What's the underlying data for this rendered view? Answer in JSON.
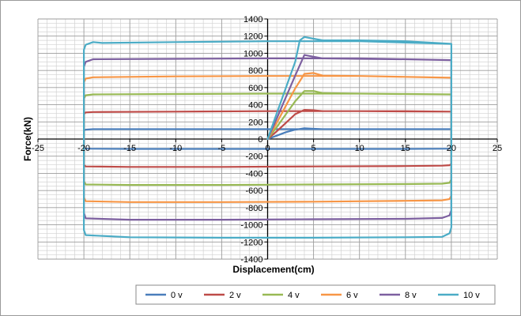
{
  "chart_data": {
    "type": "line",
    "title": "",
    "xlabel": "Displacement(cm)",
    "ylabel": "Force(kN)",
    "xlim": [
      -25,
      25
    ],
    "ylim": [
      -1400,
      1400
    ],
    "x_ticks": [
      -25,
      -20,
      -15,
      -10,
      -5,
      0,
      5,
      10,
      15,
      20,
      25
    ],
    "y_ticks": [
      -1400,
      -1200,
      -1000,
      -800,
      -600,
      -400,
      -200,
      0,
      200,
      400,
      600,
      800,
      1000,
      1200,
      1400
    ],
    "grid": true,
    "grid_minor": true,
    "legend_position": "bottom",
    "series": [
      {
        "name": "0 v",
        "color": "#4a7ebb",
        "points": [
          [
            0,
            0
          ],
          [
            1,
            40
          ],
          [
            2,
            80
          ],
          [
            3,
            110
          ],
          [
            4,
            125
          ],
          [
            5,
            120
          ],
          [
            6,
            115
          ],
          [
            10,
            115
          ],
          [
            15,
            115
          ],
          [
            20,
            115
          ],
          [
            20,
            0
          ],
          [
            20,
            -105
          ],
          [
            19.8,
            -112
          ],
          [
            15,
            -115
          ],
          [
            5,
            -115
          ],
          [
            -5,
            -115
          ],
          [
            -15,
            -115
          ],
          [
            -19.8,
            -112
          ],
          [
            -20,
            -105
          ],
          [
            -20,
            0
          ],
          [
            -20,
            100
          ],
          [
            -19.8,
            110
          ],
          [
            -19,
            115
          ],
          [
            -10,
            115
          ],
          [
            0,
            115
          ],
          [
            10,
            115
          ],
          [
            20,
            115
          ]
        ]
      },
      {
        "name": "2 v",
        "color": "#be4b48",
        "points": [
          [
            0,
            0
          ],
          [
            1,
            90
          ],
          [
            2,
            190
          ],
          [
            3,
            290
          ],
          [
            4,
            340
          ],
          [
            5,
            335
          ],
          [
            6,
            325
          ],
          [
            10,
            325
          ],
          [
            15,
            325
          ],
          [
            20,
            320
          ],
          [
            20,
            0
          ],
          [
            20,
            -290
          ],
          [
            19.8,
            -305
          ],
          [
            19,
            -310
          ],
          [
            15,
            -315
          ],
          [
            5,
            -320
          ],
          [
            -5,
            -325
          ],
          [
            -15,
            -325
          ],
          [
            -19.8,
            -320
          ],
          [
            -20,
            -300
          ],
          [
            -20,
            0
          ],
          [
            -20,
            290
          ],
          [
            -19.8,
            310
          ],
          [
            -19,
            315
          ],
          [
            -10,
            320
          ],
          [
            0,
            325
          ],
          [
            10,
            325
          ],
          [
            20,
            320
          ]
        ]
      },
      {
        "name": "4 v",
        "color": "#98b954",
        "points": [
          [
            0,
            0
          ],
          [
            1,
            140
          ],
          [
            2,
            290
          ],
          [
            3,
            440
          ],
          [
            4,
            560
          ],
          [
            5,
            560
          ],
          [
            6,
            535
          ],
          [
            10,
            530
          ],
          [
            15,
            525
          ],
          [
            20,
            520
          ],
          [
            20,
            0
          ],
          [
            20,
            -470
          ],
          [
            19.8,
            -510
          ],
          [
            19,
            -520
          ],
          [
            15,
            -525
          ],
          [
            5,
            -530
          ],
          [
            -5,
            -535
          ],
          [
            -15,
            -535
          ],
          [
            -19.8,
            -530
          ],
          [
            -20,
            -490
          ],
          [
            -20,
            0
          ],
          [
            -20,
            470
          ],
          [
            -19.8,
            510
          ],
          [
            -19,
            520
          ],
          [
            -10,
            525
          ],
          [
            0,
            530
          ],
          [
            10,
            530
          ],
          [
            20,
            520
          ]
        ]
      },
      {
        "name": "6 v",
        "color": "#f79646",
        "points": [
          [
            0,
            0
          ],
          [
            1,
            190
          ],
          [
            2,
            390
          ],
          [
            3,
            590
          ],
          [
            4,
            760
          ],
          [
            5,
            770
          ],
          [
            6,
            740
          ],
          [
            10,
            735
          ],
          [
            15,
            725
          ],
          [
            20,
            715
          ],
          [
            20,
            0
          ],
          [
            20,
            -660
          ],
          [
            19.8,
            -700
          ],
          [
            19,
            -715
          ],
          [
            15,
            -720
          ],
          [
            5,
            -730
          ],
          [
            -5,
            -735
          ],
          [
            -15,
            -735
          ],
          [
            -19.8,
            -725
          ],
          [
            -20,
            -680
          ],
          [
            -20,
            0
          ],
          [
            -20,
            660
          ],
          [
            -19.8,
            705
          ],
          [
            -19,
            720
          ],
          [
            -10,
            730
          ],
          [
            0,
            735
          ],
          [
            10,
            735
          ],
          [
            20,
            715
          ]
        ]
      },
      {
        "name": "8 v",
        "color": "#7d60a0",
        "points": [
          [
            0,
            0
          ],
          [
            1,
            240
          ],
          [
            2,
            490
          ],
          [
            3,
            740
          ],
          [
            4,
            980
          ],
          [
            5,
            960
          ],
          [
            6,
            940
          ],
          [
            10,
            935
          ],
          [
            15,
            930
          ],
          [
            20,
            920
          ],
          [
            20,
            0
          ],
          [
            20,
            -830
          ],
          [
            19.8,
            -890
          ],
          [
            19,
            -920
          ],
          [
            15,
            -930
          ],
          [
            5,
            -935
          ],
          [
            -5,
            -940
          ],
          [
            -15,
            -940
          ],
          [
            -19.8,
            -925
          ],
          [
            -20,
            -860
          ],
          [
            -20,
            0
          ],
          [
            -20,
            840
          ],
          [
            -19.8,
            900
          ],
          [
            -19,
            930
          ],
          [
            -10,
            935
          ],
          [
            0,
            940
          ],
          [
            10,
            940
          ],
          [
            20,
            920
          ]
        ]
      },
      {
        "name": "10 v",
        "color": "#4bacc6",
        "points": [
          [
            0,
            0
          ],
          [
            1,
            300
          ],
          [
            2,
            600
          ],
          [
            3,
            900
          ],
          [
            3.5,
            1150
          ],
          [
            4,
            1190
          ],
          [
            5,
            1170
          ],
          [
            6,
            1150
          ],
          [
            10,
            1150
          ],
          [
            15,
            1140
          ],
          [
            20,
            1110
          ],
          [
            20,
            0
          ],
          [
            20,
            -1030
          ],
          [
            19.8,
            -1100
          ],
          [
            19,
            -1140
          ],
          [
            15,
            -1145
          ],
          [
            5,
            -1150
          ],
          [
            -5,
            -1150
          ],
          [
            -15,
            -1145
          ],
          [
            -19.8,
            -1120
          ],
          [
            -20,
            -1060
          ],
          [
            -20,
            0
          ],
          [
            -20,
            1040
          ],
          [
            -19.8,
            1100
          ],
          [
            -19,
            1130
          ],
          [
            -18,
            1120
          ],
          [
            -10,
            1130
          ],
          [
            0,
            1140
          ],
          [
            10,
            1140
          ],
          [
            20,
            1110
          ]
        ]
      }
    ]
  }
}
